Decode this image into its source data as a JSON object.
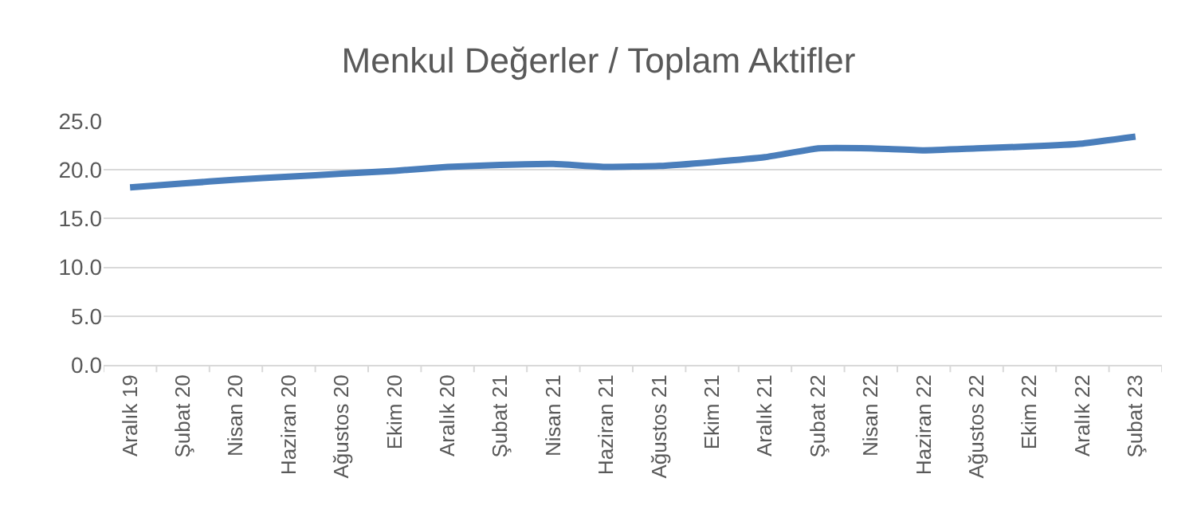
{
  "chart_data": {
    "type": "line",
    "title": "Menkul Değerler / Toplam Aktifler",
    "categories": [
      "Aralık 19",
      "Şubat 20",
      "Nisan 20",
      "Haziran 20",
      "Ağustos 20",
      "Ekim 20",
      "Aralık 20",
      "Şubat 21",
      "Nisan 21",
      "Haziran 21",
      "Ağustos 21",
      "Ekim 21",
      "Aralık 21",
      "Şubat 22",
      "Nisan 22",
      "Haziran 22",
      "Ağustos 22",
      "Ekim 22",
      "Aralık 22",
      "Şubat 23"
    ],
    "series": [
      {
        "color": "#4a7ebb",
        "values": [
          18.2,
          18.6,
          19.0,
          19.3,
          19.6,
          19.9,
          20.3,
          20.5,
          20.6,
          20.3,
          20.4,
          20.8,
          21.3,
          22.2,
          22.2,
          22.0,
          22.2,
          22.4,
          22.7,
          23.4
        ]
      }
    ],
    "ylim": [
      0,
      25
    ],
    "yticks": [
      {
        "value": 0,
        "label": "0.0"
      },
      {
        "value": 5,
        "label": "5.0"
      },
      {
        "value": 10,
        "label": "10.0"
      },
      {
        "value": 15,
        "label": "15.0"
      },
      {
        "value": 20,
        "label": "20.0"
      },
      {
        "value": 25,
        "label": "25.0"
      }
    ],
    "grid": "y",
    "marker": "none",
    "line_style": "solid"
  }
}
